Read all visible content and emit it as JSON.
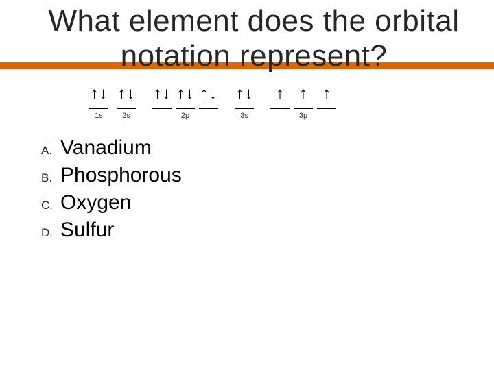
{
  "title": {
    "line1": "What element does the orbital",
    "line2": "notation represent?"
  },
  "accent_color": "#e06400",
  "orbitals": [
    {
      "label": "1s",
      "boxes": [
        {
          "up": true,
          "down": true
        }
      ],
      "gap_after": 12
    },
    {
      "label": "2s",
      "boxes": [
        {
          "up": true,
          "down": true
        }
      ],
      "gap_after": 24
    },
    {
      "label": "2p",
      "boxes": [
        {
          "up": true,
          "down": true
        },
        {
          "up": true,
          "down": true
        },
        {
          "up": true,
          "down": true
        }
      ],
      "gap_after": 24
    },
    {
      "label": "3s",
      "boxes": [
        {
          "up": true,
          "down": true
        }
      ],
      "gap_after": 24
    },
    {
      "label": "3p",
      "boxes": [
        {
          "up": true,
          "down": false
        },
        {
          "up": true,
          "down": false
        },
        {
          "up": true,
          "down": false
        }
      ],
      "gap_after": 0
    }
  ],
  "arrows": {
    "up_glyph": "↑",
    "down_glyph": "↓"
  },
  "answers": [
    {
      "letter": "A.",
      "text": "Vanadium"
    },
    {
      "letter": "B.",
      "text": "Phosphorous"
    },
    {
      "letter": "C.",
      "text": "Oxygen"
    },
    {
      "letter": "D.",
      "text": "Sulfur"
    }
  ],
  "style": {
    "title_fontsize": 44,
    "answer_fontsize": 30,
    "letter_fontsize": 17,
    "orbital_label_fontsize": 11,
    "background": "#ffffff",
    "text_color": "#000000"
  }
}
